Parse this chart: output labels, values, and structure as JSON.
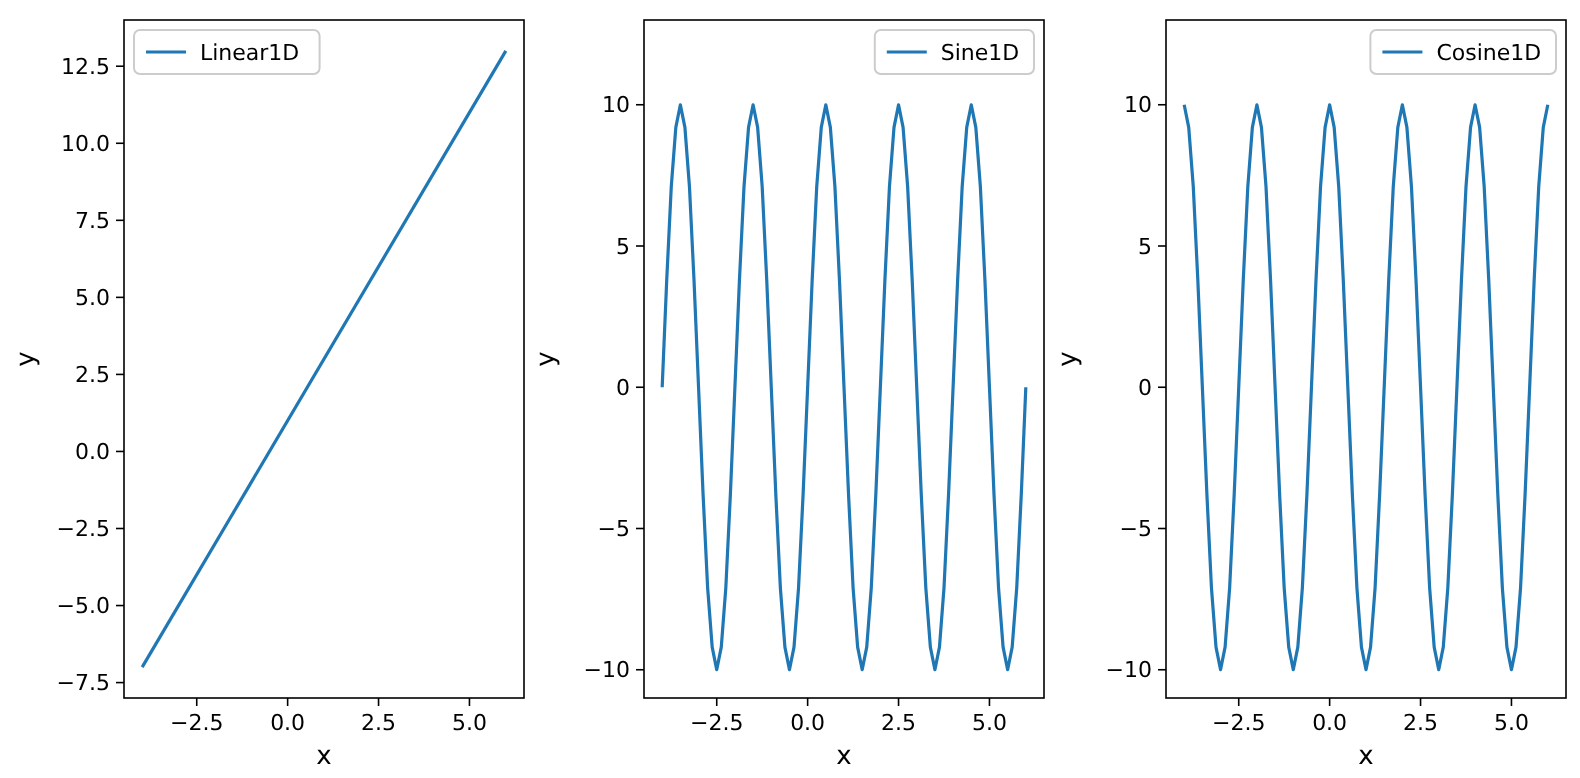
{
  "chart_data": [
    {
      "type": "line",
      "xlabel": "x",
      "ylabel": "y",
      "legend": "top left",
      "grid": false,
      "xlim": [
        -4.5,
        6.5
      ],
      "ylim": [
        -8,
        14
      ],
      "xticks": [
        {
          "value": -2.5,
          "label": "−2.5"
        },
        {
          "value": 0,
          "label": "0.0"
        },
        {
          "value": 2.5,
          "label": "2.5"
        },
        {
          "value": 5,
          "label": "5.0"
        }
      ],
      "yticks": [
        {
          "value": -7.5,
          "label": "−7.5"
        },
        {
          "value": -5,
          "label": "−5.0"
        },
        {
          "value": -2.5,
          "label": "−2.5"
        },
        {
          "value": 0,
          "label": "0.0"
        },
        {
          "value": 2.5,
          "label": "2.5"
        },
        {
          "value": 5,
          "label": "5.0"
        },
        {
          "value": 7.5,
          "label": "7.5"
        },
        {
          "value": 10,
          "label": "10.0"
        },
        {
          "value": 12.5,
          "label": "12.5"
        }
      ],
      "x": [
        -4,
        6
      ],
      "series": [
        {
          "name": "Linear1D",
          "color": "#1f77b4",
          "values": [
            -7,
            13
          ]
        }
      ]
    },
    {
      "type": "line",
      "xlabel": "x",
      "ylabel": "y",
      "legend": "top right",
      "grid": false,
      "xlim": [
        -4.5,
        6.5
      ],
      "ylim": [
        -11,
        13
      ],
      "xticks": [
        {
          "value": -2.5,
          "label": "−2.5"
        },
        {
          "value": 0,
          "label": "0.0"
        },
        {
          "value": 2.5,
          "label": "2.5"
        },
        {
          "value": 5,
          "label": "5.0"
        }
      ],
      "yticks": [
        {
          "value": -10,
          "label": "−10"
        },
        {
          "value": -5,
          "label": "−5"
        },
        0,
        5,
        10
      ],
      "x": [
        -4,
        -3.875,
        -3.75,
        -3.625,
        -3.5,
        -3.375,
        -3.25,
        -3.125,
        -3,
        -2.875,
        -2.75,
        -2.625,
        -2.5,
        -2.375,
        -2.25,
        -2.125,
        -2,
        -1.875,
        -1.75,
        -1.625,
        -1.5,
        -1.375,
        -1.25,
        -1.125,
        -1,
        -0.875,
        -0.75,
        -0.625,
        -0.5,
        -0.375,
        -0.25,
        -0.125,
        0,
        0.125,
        0.25,
        0.375,
        0.5,
        0.625,
        0.75,
        0.875,
        1,
        1.125,
        1.25,
        1.375,
        1.5,
        1.625,
        1.75,
        1.875,
        2,
        2.125,
        2.25,
        2.375,
        2.5,
        2.625,
        2.75,
        2.875,
        3,
        3.125,
        3.25,
        3.375,
        3.5,
        3.625,
        3.75,
        3.875,
        4,
        4.125,
        4.25,
        4.375,
        4.5,
        4.625,
        4.75,
        4.875,
        5,
        5.125,
        5.25,
        5.375,
        5.5,
        5.625,
        5.75,
        5.875,
        6
      ],
      "series": [
        {
          "name": "Sine1D",
          "color": "#1f77b4",
          "values": [
            0,
            3.8,
            7.1,
            9.2,
            10,
            9.2,
            7.1,
            3.8,
            0,
            -3.8,
            -7.1,
            -9.2,
            -10,
            -9.2,
            -7.1,
            -3.8,
            0,
            3.8,
            7.1,
            9.2,
            10,
            9.2,
            7.1,
            3.8,
            0,
            -3.8,
            -7.1,
            -9.2,
            -10,
            -9.2,
            -7.1,
            -3.8,
            0,
            3.8,
            7.1,
            9.2,
            10,
            9.2,
            7.1,
            3.8,
            0,
            -3.8,
            -7.1,
            -9.2,
            -10,
            -9.2,
            -7.1,
            -3.8,
            0,
            3.8,
            7.1,
            9.2,
            10,
            9.2,
            7.1,
            3.8,
            0,
            -3.8,
            -7.1,
            -9.2,
            -10,
            -9.2,
            -7.1,
            -3.8,
            0,
            3.8,
            7.1,
            9.2,
            10,
            9.2,
            7.1,
            3.8,
            0,
            -3.8,
            -7.1,
            -9.2,
            -10,
            -9.2,
            -7.1,
            -3.8,
            0
          ]
        }
      ]
    },
    {
      "type": "line",
      "xlabel": "x",
      "ylabel": "y",
      "legend": "top right",
      "grid": false,
      "xlim": [
        -4.5,
        6.5
      ],
      "ylim": [
        -11,
        13
      ],
      "xticks": [
        {
          "value": -2.5,
          "label": "−2.5"
        },
        {
          "value": 0,
          "label": "0.0"
        },
        {
          "value": 2.5,
          "label": "2.5"
        },
        {
          "value": 5,
          "label": "5.0"
        }
      ],
      "yticks": [
        {
          "value": -10,
          "label": "−10"
        },
        {
          "value": -5,
          "label": "−5"
        },
        0,
        5,
        10
      ],
      "x": [
        -4,
        -3.875,
        -3.75,
        -3.625,
        -3.5,
        -3.375,
        -3.25,
        -3.125,
        -3,
        -2.875,
        -2.75,
        -2.625,
        -2.5,
        -2.375,
        -2.25,
        -2.125,
        -2,
        -1.875,
        -1.75,
        -1.625,
        -1.5,
        -1.375,
        -1.25,
        -1.125,
        -1,
        -0.875,
        -0.75,
        -0.625,
        -0.5,
        -0.375,
        -0.25,
        -0.125,
        0,
        0.125,
        0.25,
        0.375,
        0.5,
        0.625,
        0.75,
        0.875,
        1,
        1.125,
        1.25,
        1.375,
        1.5,
        1.625,
        1.75,
        1.875,
        2,
        2.125,
        2.25,
        2.375,
        2.5,
        2.625,
        2.75,
        2.875,
        3,
        3.125,
        3.25,
        3.375,
        3.5,
        3.625,
        3.75,
        3.875,
        4,
        4.125,
        4.25,
        4.375,
        4.5,
        4.625,
        4.75,
        4.875,
        5,
        5.125,
        5.25,
        5.375,
        5.5,
        5.625,
        5.75,
        5.875,
        6
      ],
      "series": [
        {
          "name": "Cosine1D",
          "color": "#1f77b4",
          "values": [
            10,
            9.2,
            7.1,
            3.8,
            0,
            -3.8,
            -7.1,
            -9.2,
            -10,
            -9.2,
            -7.1,
            -3.8,
            0,
            3.8,
            7.1,
            9.2,
            10,
            9.2,
            7.1,
            3.8,
            0,
            -3.8,
            -7.1,
            -9.2,
            -10,
            -9.2,
            -7.1,
            -3.8,
            0,
            3.8,
            7.1,
            9.2,
            10,
            9.2,
            7.1,
            3.8,
            0,
            -3.8,
            -7.1,
            -9.2,
            -10,
            -9.2,
            -7.1,
            -3.8,
            0,
            3.8,
            7.1,
            9.2,
            10,
            9.2,
            7.1,
            3.8,
            0,
            -3.8,
            -7.1,
            -9.2,
            -10,
            -9.2,
            -7.1,
            -3.8,
            0,
            3.8,
            7.1,
            9.2,
            10,
            9.2,
            7.1,
            3.8,
            0,
            -3.8,
            -7.1,
            -9.2,
            -10,
            -9.2,
            -7.1,
            -3.8,
            0,
            3.8,
            7.1,
            9.2,
            10
          ]
        }
      ]
    }
  ]
}
